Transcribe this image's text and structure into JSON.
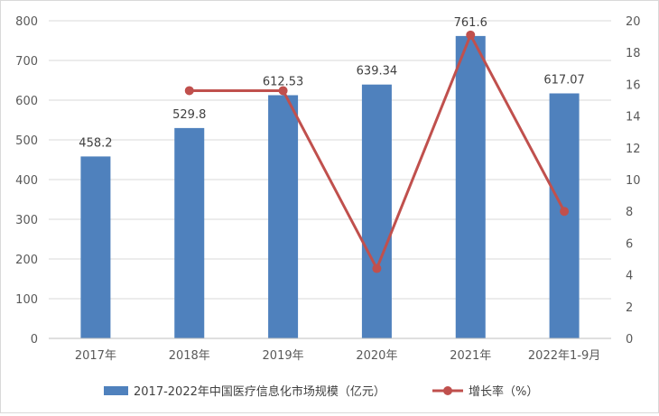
{
  "chart_data": {
    "type": "bar+line",
    "categories": [
      "2017年",
      "2018年",
      "2019年",
      "2020年",
      "2021年",
      "2022年1-9月"
    ],
    "series": [
      {
        "name": "2017-2022年中国医疗信息化市场规模（亿元）",
        "type": "bar",
        "axis": "left",
        "color": "#4f81bd",
        "values": [
          458.2,
          529.8,
          612.53,
          639.34,
          761.6,
          617.07
        ],
        "labels": [
          "458.2",
          "529.8",
          "612.53",
          "639.34",
          "761.6",
          "617.07"
        ]
      },
      {
        "name": "增长率（%）",
        "type": "line",
        "axis": "right",
        "color": "#c0504d",
        "values": [
          null,
          15.6,
          15.6,
          4.4,
          19.1,
          8.0
        ]
      }
    ],
    "y_left": {
      "min": 0,
      "max": 800,
      "step": 100,
      "ticks": [
        "0",
        "100",
        "200",
        "300",
        "400",
        "500",
        "600",
        "700",
        "800"
      ]
    },
    "y_right": {
      "min": 0,
      "max": 20,
      "step": 2,
      "ticks": [
        "0",
        "2",
        "4",
        "6",
        "8",
        "10",
        "12",
        "14",
        "16",
        "18",
        "20"
      ]
    },
    "grid": true,
    "legend": "bottom"
  }
}
